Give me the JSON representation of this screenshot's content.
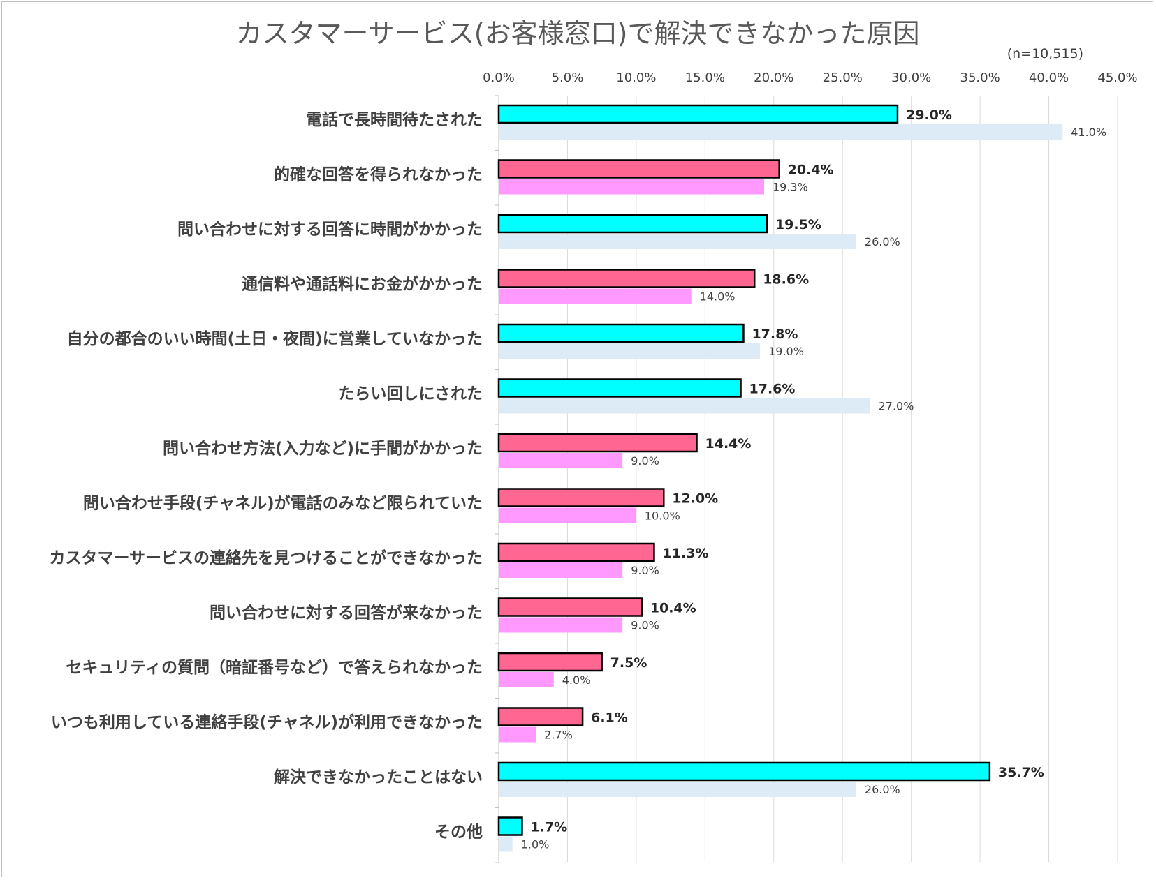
{
  "chart_data": {
    "type": "bar",
    "orientation": "horizontal",
    "title": "カスタマーサービス(お客様窓口)で解決できなかった原因",
    "note": "(n=10,515)",
    "xlim": [
      0,
      45
    ],
    "x_ticks": [
      "0.0%",
      "5.0%",
      "10.0%",
      "15.0%",
      "20.0%",
      "25.0%",
      "30.0%",
      "35.0%",
      "40.0%",
      "45.0%"
    ],
    "x_tick_values": [
      0,
      5,
      10,
      15,
      20,
      25,
      30,
      35,
      40,
      45
    ],
    "grid": "vertical",
    "legend": "none",
    "categories": [
      "電話で長時間待たされた",
      "的確な回答を得られなかった",
      "問い合わせに対する回答に時間がかかった",
      "通信料や通話料にお金がかかった",
      "自分の都合のいい時間(土日・夜間)に営業していなかった",
      "たらい回しにされた",
      "問い合わせ方法(入力など)に手間がかかった",
      "問い合わせ手段(チャネル)が電話のみなど限られていた",
      "カスタマーサービスの連絡先を見つけることができなかった",
      "問い合わせに対する回答が来なかった",
      "セキュリティの質問（暗証番号など）で答えられなかった",
      "いつも利用している連絡手段(チャネル)が利用できなかった",
      "解決できなかったことはない",
      "その他"
    ],
    "series": [
      {
        "values": [
          29.0,
          20.4,
          19.5,
          18.6,
          17.8,
          17.6,
          14.4,
          12.0,
          11.3,
          10.4,
          7.5,
          6.1,
          35.7,
          1.7
        ],
        "labels": [
          "29.0%",
          "20.4%",
          "19.5%",
          "18.6%",
          "17.8%",
          "17.6%",
          "14.4%",
          "12.0%",
          "11.3%",
          "10.4%",
          "7.5%",
          "6.1%",
          "35.7%",
          "1.7%"
        ],
        "colors": [
          "#00ffff",
          "#ff6691",
          "#00ffff",
          "#ff6691",
          "#00ffff",
          "#00ffff",
          "#ff6691",
          "#ff6691",
          "#ff6691",
          "#ff6691",
          "#ff6691",
          "#ff6691",
          "#00ffff",
          "#00ffff"
        ],
        "outline": "#000000"
      },
      {
        "values": [
          41.0,
          19.3,
          26.0,
          14.0,
          19.0,
          27.0,
          9.0,
          10.0,
          9.0,
          9.0,
          4.0,
          2.7,
          26.0,
          1.0
        ],
        "labels": [
          "41.0%",
          "19.3%",
          "26.0%",
          "14.0%",
          "19.0%",
          "27.0%",
          "9.0%",
          "10.0%",
          "9.0%",
          "9.0%",
          "4.0%",
          "2.7%",
          "26.0%",
          "1.0%"
        ],
        "colors": [
          "#ddebf7",
          "#ff99ff",
          "#ddebf7",
          "#ff99ff",
          "#ddebf7",
          "#ddebf7",
          "#ff99ff",
          "#ff99ff",
          "#ff99ff",
          "#ff99ff",
          "#ff99ff",
          "#ff99ff",
          "#ddebf7",
          "#ddebf7"
        ]
      }
    ]
  }
}
